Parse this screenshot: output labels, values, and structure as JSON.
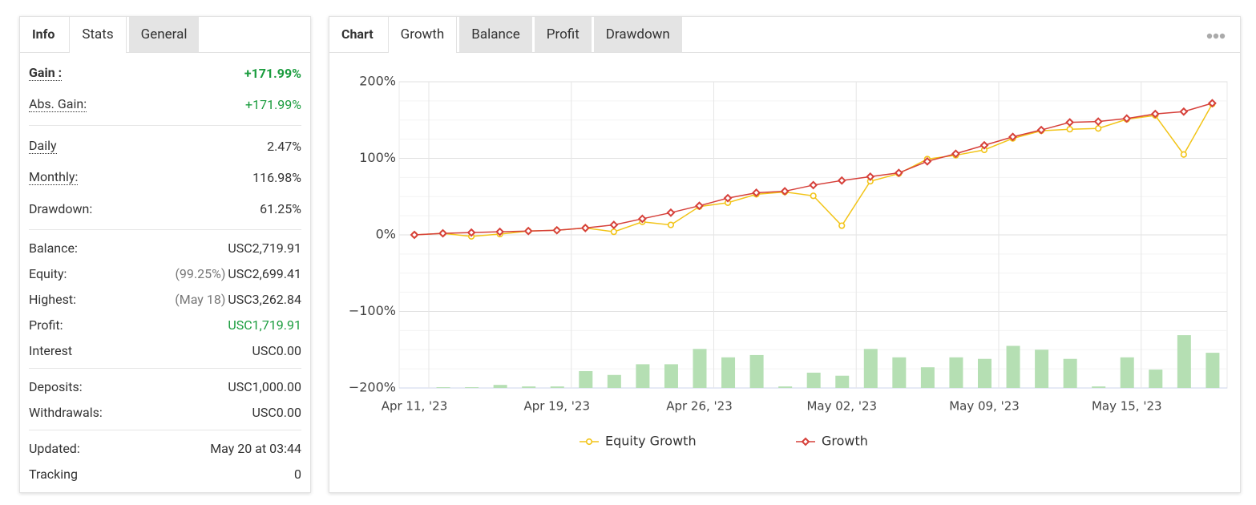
{
  "stats_panel": {
    "tabs": [
      "Info",
      "Stats",
      "General"
    ],
    "active_tab": 1,
    "groups": [
      [
        {
          "label": "Gain :",
          "value": "+171.99%",
          "color": "#1a9c3e",
          "bold": true,
          "underline": true
        },
        {
          "label": "Abs. Gain:",
          "value": "+171.99%",
          "color": "#1a9c3e",
          "underline": true
        }
      ],
      [
        {
          "label": "Daily",
          "value": "2.47%",
          "underline": true
        },
        {
          "label": "Monthly:",
          "value": "116.98%",
          "underline": true
        },
        {
          "label": "Drawdown:",
          "value": "61.25%"
        }
      ],
      [
        {
          "label": "Balance:",
          "value": "USC2,719.91"
        },
        {
          "label": "Equity:",
          "note": "(99.25%)",
          "value": "USC2,699.41"
        },
        {
          "label": "Highest:",
          "note": "(May 18)",
          "value": "USC3,262.84"
        },
        {
          "label": "Profit:",
          "value": "USC1,719.91",
          "color": "#1a9c3e"
        },
        {
          "label": "Interest",
          "value": "USC0.00"
        }
      ],
      [
        {
          "label": "Deposits:",
          "value": "USC1,000.00"
        },
        {
          "label": "Withdrawals:",
          "value": "USC0.00"
        }
      ],
      [
        {
          "label": "Updated:",
          "value": "May 20 at 03:44"
        },
        {
          "label": "Tracking",
          "value": "0"
        }
      ]
    ]
  },
  "chart_panel": {
    "tabs": [
      "Chart",
      "Growth",
      "Balance",
      "Profit",
      "Drawdown"
    ],
    "active_tab": 1
  },
  "chart_data": {
    "type": "line",
    "categories": [
      "Apr 11, '23",
      null,
      null,
      null,
      null,
      "Apr 19, '23",
      null,
      null,
      null,
      null,
      "Apr 26, '23",
      null,
      null,
      null,
      null,
      "May 02, '23",
      null,
      null,
      null,
      null,
      "May 09, '23",
      null,
      null,
      null,
      null,
      "May 15, '23",
      null,
      null,
      null
    ],
    "ylim": [
      -200,
      200
    ],
    "yticks": [
      {
        "value": -200,
        "label": "−200%"
      },
      {
        "value": -100,
        "label": "−100%"
      },
      {
        "value": 0,
        "label": "0%"
      },
      {
        "value": 100,
        "label": "100%"
      },
      {
        "value": 200,
        "label": "200%"
      }
    ],
    "grid": true,
    "y2lim": [
      0,
      400
    ],
    "series": [
      {
        "name": "Equity Growth",
        "color": "#f2c418",
        "marker": "circle",
        "values": [
          0,
          2,
          -2,
          1,
          5,
          6,
          9,
          4,
          17,
          13,
          37,
          42,
          53,
          56,
          51,
          12,
          70,
          80,
          99,
          104,
          111,
          126,
          136,
          138,
          139,
          151,
          156,
          105,
          171
        ]
      },
      {
        "name": "Growth",
        "color": "#d6403a",
        "marker": "diamond",
        "values": [
          0,
          2,
          3,
          4,
          5,
          6,
          9,
          13,
          21,
          29,
          38,
          48,
          55,
          57,
          65,
          71,
          76,
          81,
          96,
          106,
          117,
          128,
          137,
          147,
          148,
          152,
          158,
          161,
          172
        ]
      },
      {
        "type": "bar",
        "axis": "y2",
        "color": "#b5dfb3",
        "values": [
          null,
          1,
          1,
          4,
          2,
          2,
          22,
          17,
          31,
          31,
          51,
          40,
          43,
          2,
          20,
          16,
          51,
          40,
          27,
          40,
          38,
          55,
          50,
          38,
          2,
          40,
          24,
          69,
          46
        ]
      }
    ]
  }
}
